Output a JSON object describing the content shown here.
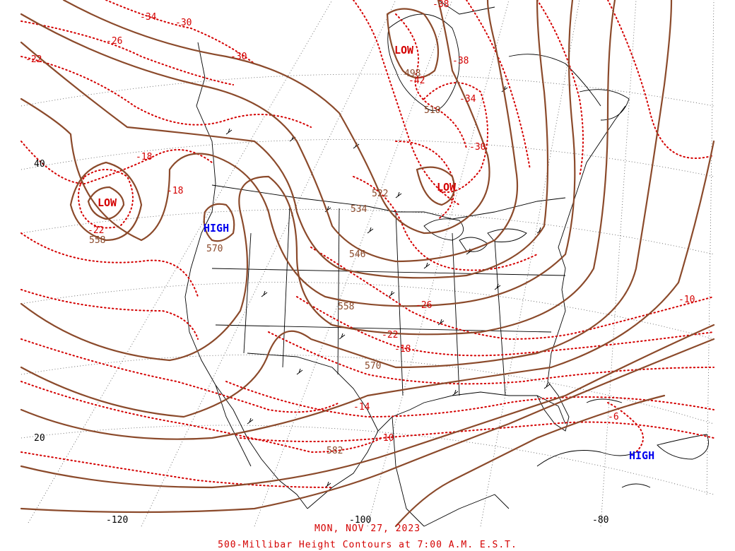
{
  "date_label": "MON, NOV 27, 2023",
  "chart_title": "500-Millibar Height Contours at 7:00 A.M. E.S.T.",
  "colors": {
    "height_contour": "#8b4a2b",
    "temperature_isotherm": "#d40000",
    "high_center": "#0000ee",
    "low_center": "#d40000",
    "geography": "#000000"
  },
  "longitude_labels": [
    "-120",
    "-100",
    "-80"
  ],
  "latitude_labels": [
    "40",
    "20"
  ],
  "pressure_centers": [
    {
      "type": "LOW",
      "location": "Gulf of Alaska"
    },
    {
      "type": "LOW",
      "location": "Hudson Bay"
    },
    {
      "type": "LOW",
      "location": "Ontario"
    },
    {
      "type": "HIGH",
      "location": "Pacific Northwest"
    },
    {
      "type": "HIGH",
      "location": "Caribbean"
    }
  ],
  "height_labels": [
    "498",
    "510",
    "522",
    "534",
    "546",
    "558",
    "558",
    "570",
    "570",
    "582"
  ],
  "temperature_labels": [
    "-34",
    "-30",
    "-26",
    "-30",
    "-22",
    "-38",
    "-42",
    "-38",
    "-34",
    "-30",
    "-18",
    "-18",
    "-22",
    "-26",
    "-22",
    "-18",
    "-14",
    "-10",
    "-10",
    "-6"
  ]
}
